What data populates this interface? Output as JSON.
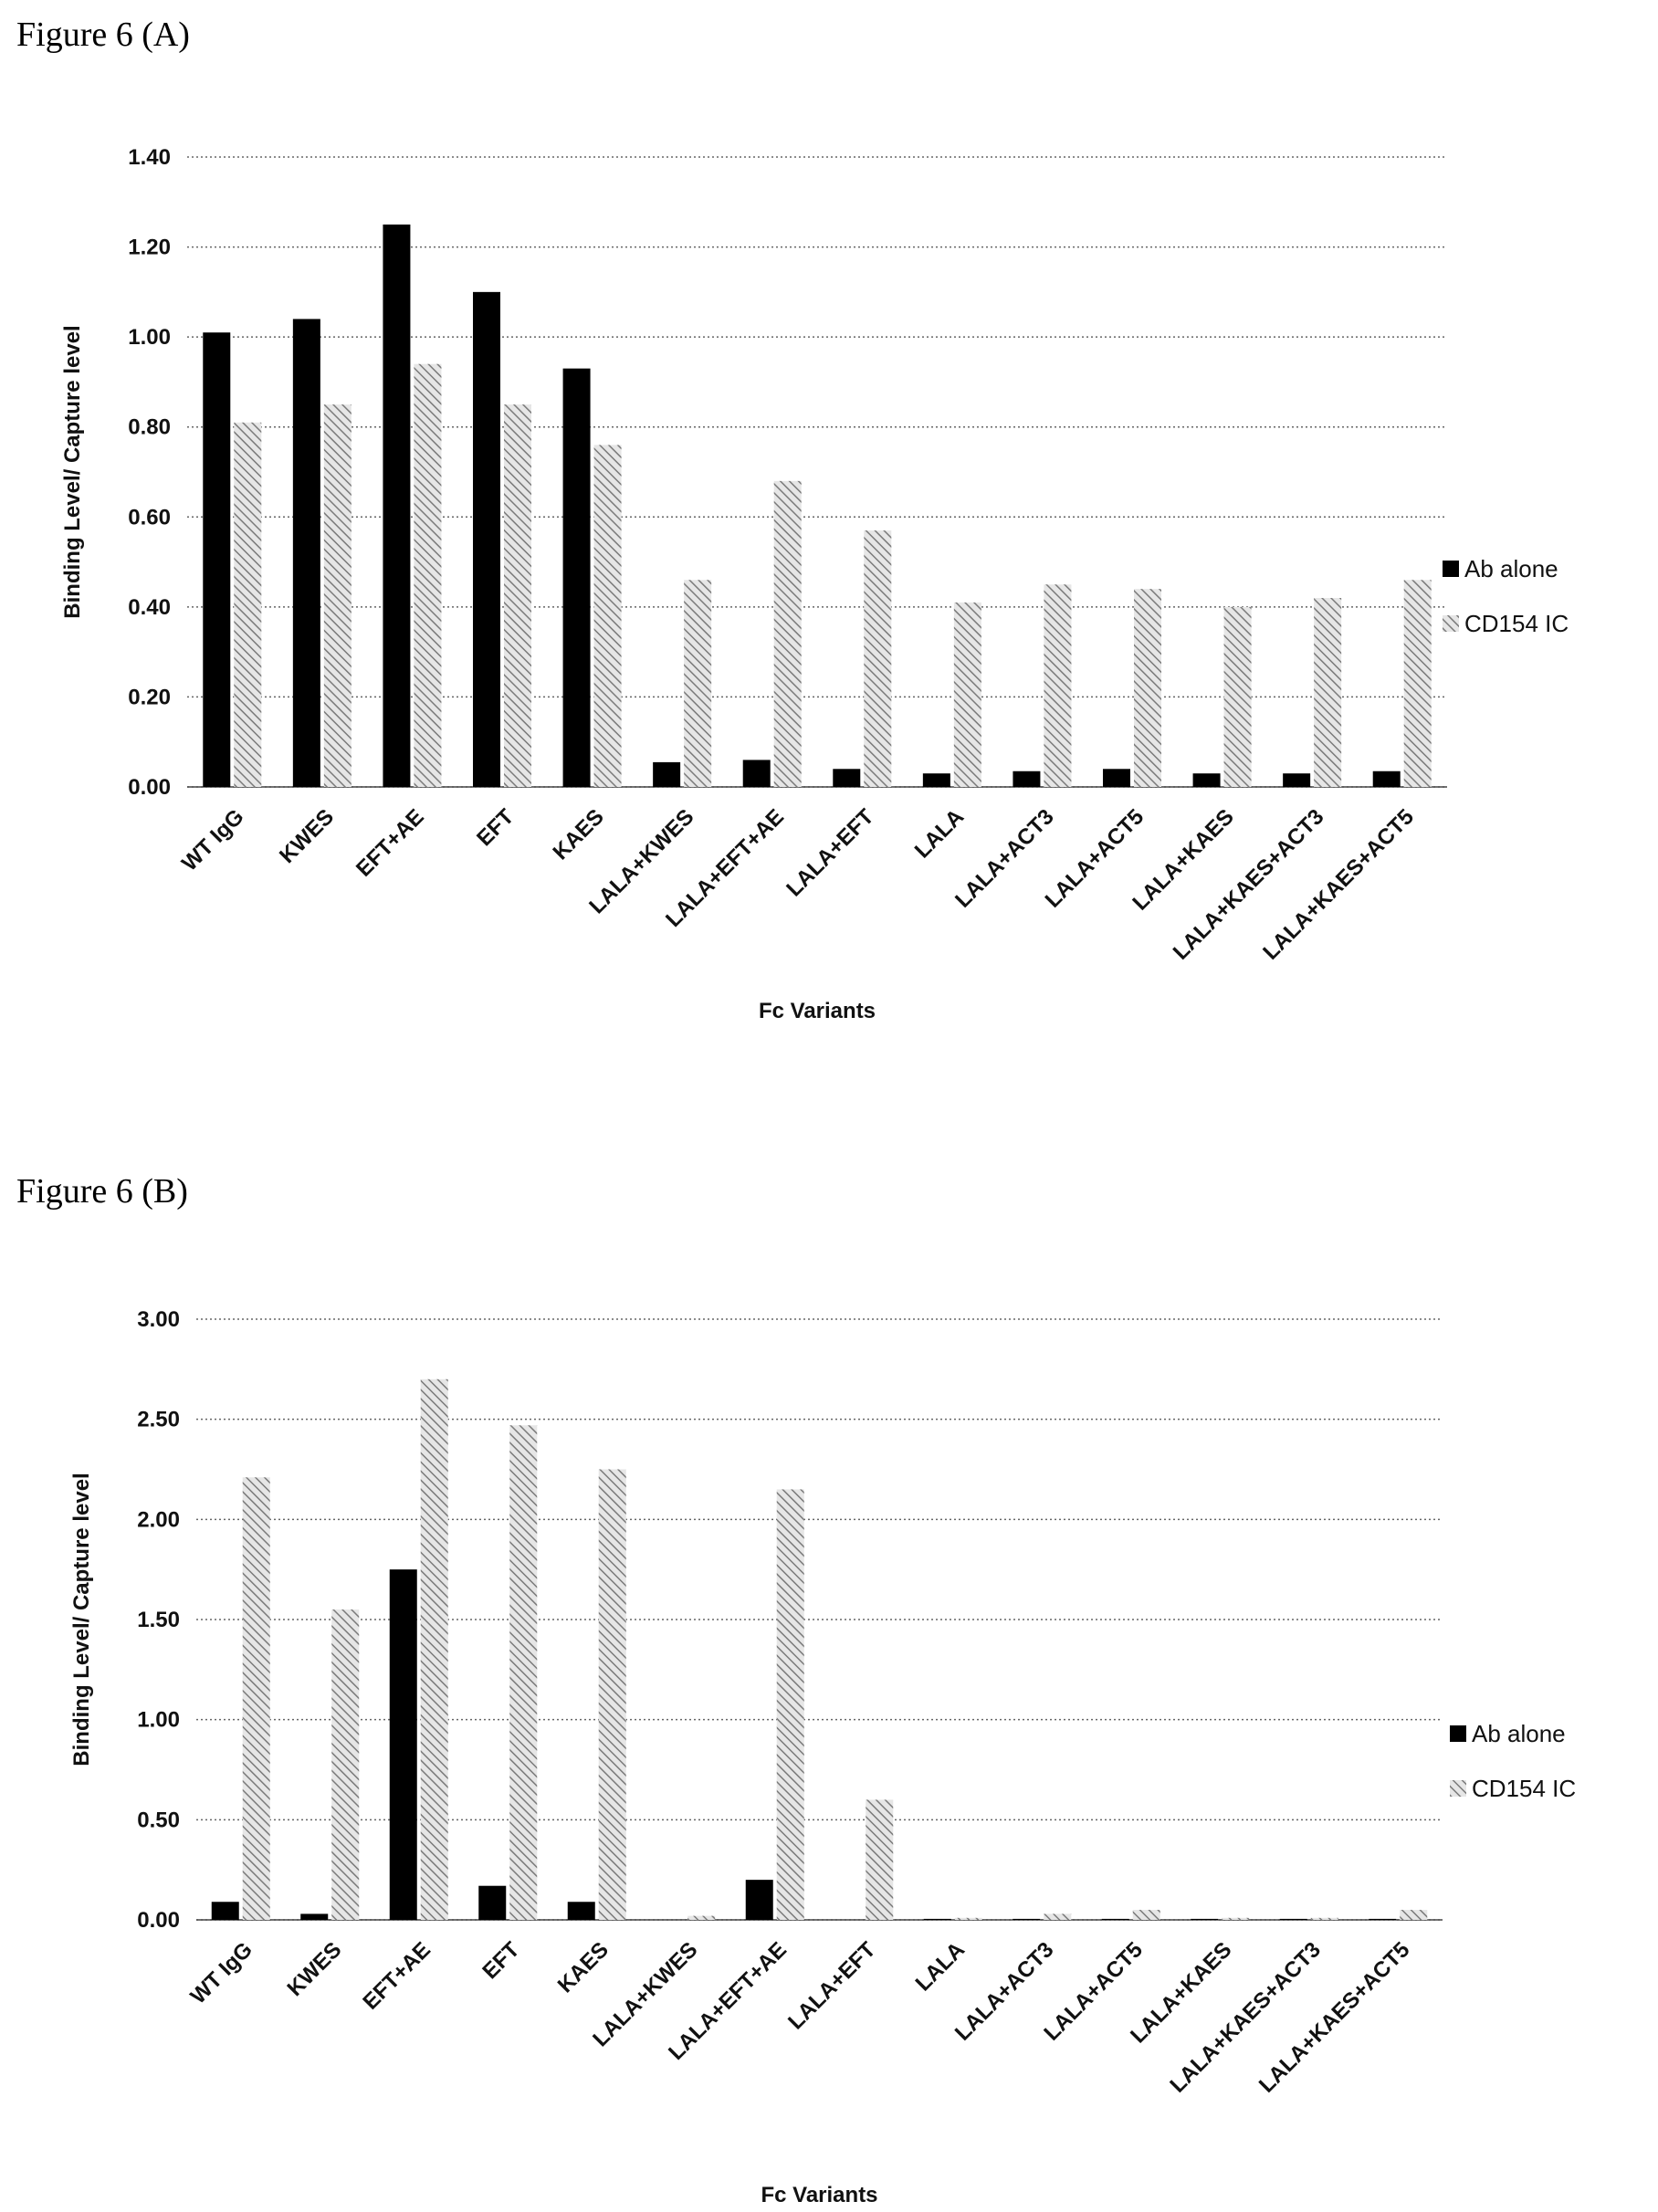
{
  "figures": [
    {
      "title": "Figure 6 (A)"
    },
    {
      "title": "Figure 6 (B)"
    }
  ],
  "colors": {
    "ab_alone": "#000000",
    "cd154_ic": "#8c8c8c",
    "grid": "#666666"
  },
  "chart_data": [
    {
      "type": "bar",
      "title": "",
      "xlabel": "Fc Variants",
      "ylabel": "Binding Level/ Capture level",
      "ylim": [
        0,
        1.4
      ],
      "yticks": [
        0,
        0.2,
        0.4,
        0.6,
        0.8,
        1.0,
        1.2,
        1.4
      ],
      "ytick_labels": [
        "0.00",
        "0.20",
        "0.40",
        "0.60",
        "0.80",
        "1.00",
        "1.20",
        "1.40"
      ],
      "grid": true,
      "legend_position": "right",
      "categories": [
        "WT IgG",
        "KWES",
        "EFT+AE",
        "EFT",
        "KAES",
        "LALA+KWES",
        "LALA+EFT+AE",
        "LALA+EFT",
        "LALA",
        "LALA+ACT3",
        "LALA+ACT5",
        "LALA+KAES",
        "LALA+KAES+ACT3",
        "LALA+KAES+ACT5"
      ],
      "series": [
        {
          "name": "Ab alone",
          "values": [
            1.01,
            1.04,
            1.25,
            1.1,
            0.93,
            0.055,
            0.06,
            0.04,
            0.03,
            0.035,
            0.04,
            0.03,
            0.03,
            0.035
          ]
        },
        {
          "name": "CD154 IC",
          "values": [
            0.81,
            0.85,
            0.94,
            0.85,
            0.76,
            0.46,
            0.68,
            0.57,
            0.41,
            0.45,
            0.44,
            0.4,
            0.42,
            0.46
          ]
        }
      ]
    },
    {
      "type": "bar",
      "title": "",
      "xlabel": "Fc Variants",
      "ylabel": "Binding Level/ Capture level",
      "ylim": [
        0,
        3.0
      ],
      "yticks": [
        0,
        0.5,
        1.0,
        1.5,
        2.0,
        2.5,
        3.0
      ],
      "ytick_labels": [
        "0.00",
        "0.50",
        "1.00",
        "1.50",
        "2.00",
        "2.50",
        "3.00"
      ],
      "grid": true,
      "legend_position": "right",
      "categories": [
        "WT IgG",
        "KWES",
        "EFT+AE",
        "EFT",
        "KAES",
        "LALA+KWES",
        "LALA+EFT+AE",
        "LALA+EFT",
        "LALA",
        "LALA+ACT3",
        "LALA+ACT5",
        "LALA+KAES",
        "LALA+KAES+ACT3",
        "LALA+KAES+ACT5"
      ],
      "series": [
        {
          "name": "Ab alone",
          "values": [
            0.09,
            0.03,
            1.75,
            0.17,
            0.09,
            0.0,
            0.2,
            0.0,
            0.005,
            0.005,
            0.005,
            0.005,
            0.005,
            0.005
          ]
        },
        {
          "name": "CD154 IC",
          "values": [
            2.21,
            1.55,
            2.7,
            2.47,
            2.25,
            0.02,
            2.15,
            0.6,
            0.01,
            0.03,
            0.05,
            0.01,
            0.01,
            0.05
          ]
        }
      ]
    }
  ]
}
